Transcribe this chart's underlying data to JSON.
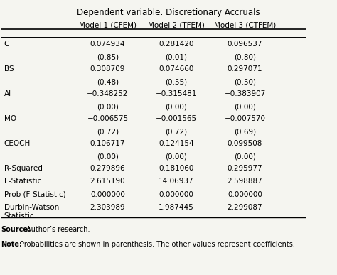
{
  "title": "Dependent variable: Discretionary Accruals",
  "col_headers": [
    "",
    "Model 1 (CFEM)",
    "Model 2 (TFEM)",
    "Model 3 (CTFEM)"
  ],
  "rows": [
    [
      "C",
      "0.074934",
      "0.281420",
      "0.096537"
    ],
    [
      "",
      "(0.85)",
      "(0.01)",
      "(0.80)"
    ],
    [
      "BS",
      "0.308709",
      "0.074660",
      "0.297071"
    ],
    [
      "",
      "(0.48)",
      "(0.55)",
      "(0.50)"
    ],
    [
      "AI",
      "−0.348252",
      "−0.315481",
      "−0.383907"
    ],
    [
      "",
      "(0.00)",
      "(0.00)",
      "(0.00)"
    ],
    [
      "MO",
      "−0.006575",
      "−0.001565",
      "−0.007570"
    ],
    [
      "",
      "(0.72)",
      "(0.72)",
      "(0.69)"
    ],
    [
      "CEOCH",
      "0.106717",
      "0.124154",
      "0.099508"
    ],
    [
      "",
      "(0.00)",
      "(0.00)",
      "(0.00)"
    ],
    [
      "R-Squared",
      "0.279896",
      "0.181060",
      "0.295977"
    ],
    [
      "F-Statistic",
      "2.615190",
      "14.06937",
      "2.598887"
    ],
    [
      "Prob (F-Statistic)",
      "0.000000",
      "0.000000",
      "0.000000"
    ],
    [
      "Durbin-Watson\nStatistic",
      "2.303989",
      "1.987445",
      "2.299087"
    ]
  ],
  "bg_color": "#f5f5f0",
  "text_color": "#000000",
  "font_size": 7.5,
  "title_font_size": 8.5
}
